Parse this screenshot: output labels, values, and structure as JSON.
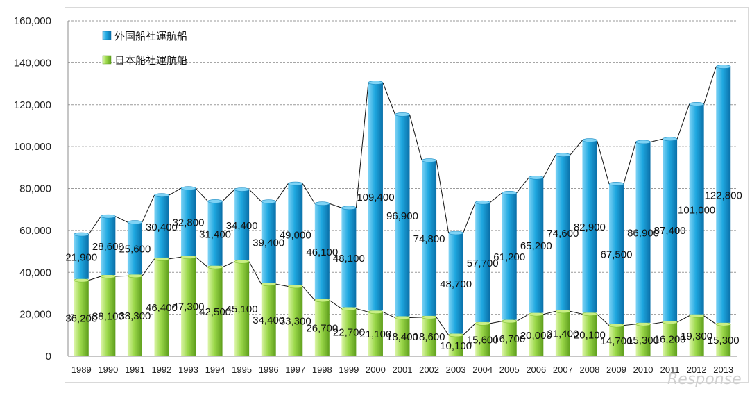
{
  "chart_data": {
    "type": "bar",
    "stacked": true,
    "categories": [
      "1989",
      "1990",
      "1991",
      "1992",
      "1993",
      "1994",
      "1995",
      "1996",
      "1997",
      "1998",
      "1999",
      "2000",
      "2001",
      "2002",
      "2003",
      "2004",
      "2005",
      "2006",
      "2007",
      "2008",
      "2009",
      "2010",
      "2011",
      "2012",
      "2013"
    ],
    "series": [
      {
        "name": "日本船社運航船",
        "color": "#92d050",
        "values": [
          36200,
          38100,
          38300,
          46400,
          47300,
          42500,
          45100,
          34400,
          33300,
          26700,
          22700,
          21100,
          18400,
          18600,
          10100,
          15600,
          16700,
          20000,
          21400,
          20100,
          14700,
          15300,
          16200,
          19300,
          15300
        ],
        "labels": [
          "36,200",
          "38,100",
          "38,300",
          "46,400",
          "47,300",
          "42,500",
          "45,100",
          "34,400",
          "33,300",
          "26,700",
          "22,700",
          "21,100",
          "18,400",
          "18,600",
          "10,100",
          "15,600",
          "16,700",
          "20,000",
          "21,400",
          "20,100",
          "14,700",
          "15,300",
          "16,200",
          "19,300",
          "15,300"
        ]
      },
      {
        "name": "外国船社運航船",
        "color": "#1f9fd8",
        "values": [
          21900,
          28600,
          25600,
          30400,
          32800,
          31400,
          34400,
          39400,
          49000,
          46100,
          48100,
          109400,
          96900,
          74800,
          48700,
          57700,
          61200,
          65200,
          74600,
          82900,
          67500,
          86900,
          87400,
          101000,
          122800
        ],
        "labels": [
          "21,900",
          "28,600",
          "25,600",
          "30,400",
          "32,800",
          "31,400",
          "34,400",
          "39,400",
          "49,000",
          "46,100",
          "48,100",
          "109,400",
          "96,900",
          "74,800",
          "48,700",
          "57,700",
          "61,200",
          "65,200",
          "74,600",
          "82,900",
          "67,500",
          "86,900",
          "87,400",
          "101,000",
          "122,800"
        ]
      }
    ],
    "ylim": [
      0,
      160000
    ],
    "yticks": [
      "0",
      "20,000",
      "40,000",
      "60,000",
      "80,000",
      "100,000",
      "120,000",
      "140,000",
      "160,000"
    ],
    "grid": true,
    "legend_position": "top-left"
  },
  "watermark": "Response"
}
